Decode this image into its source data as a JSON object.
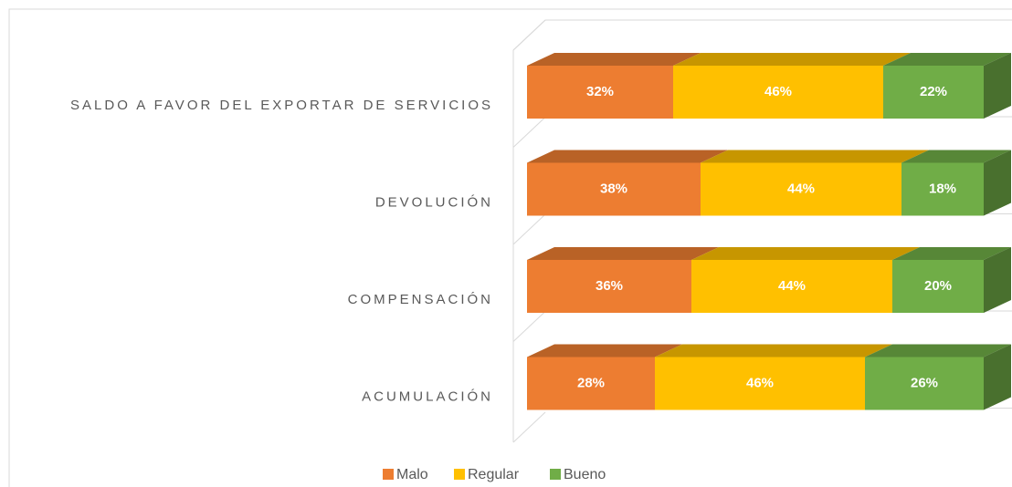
{
  "chart_data": {
    "type": "bar3d_stacked_horizontal",
    "categories": [
      "SALDO A FAVOR DEL EXPORTAR DE SERVICIOS",
      "DEVOLUCIÓN",
      "COMPENSACIÓN",
      "ACUMULACIÓN"
    ],
    "xlim": [
      0,
      100
    ],
    "series": [
      {
        "name": "Malo",
        "color": "#ED7D31",
        "values": [
          32,
          38,
          36,
          28
        ],
        "value_labels": [
          "32%",
          "38%",
          "36%",
          "28%"
        ]
      },
      {
        "name": "Regular",
        "color": "#FFC000",
        "values": [
          46,
          44,
          44,
          46
        ],
        "value_labels": [
          "46%",
          "44%",
          "44%",
          "46%"
        ]
      },
      {
        "name": "Bueno",
        "color": "#70AD47",
        "values": [
          22,
          18,
          20,
          26
        ],
        "value_labels": [
          "22%",
          "18%",
          "20%",
          "26%"
        ]
      }
    ],
    "legend": "bottom"
  }
}
